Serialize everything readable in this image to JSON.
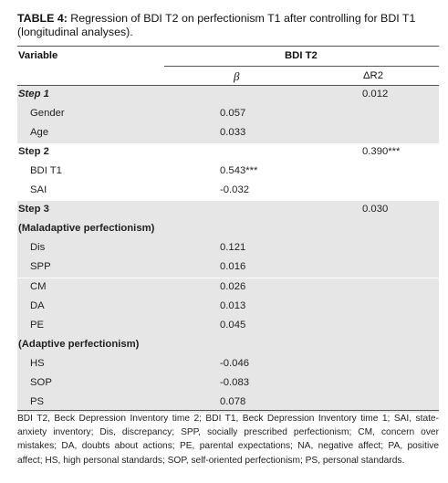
{
  "caption": {
    "label": "TABLE 4:",
    "text": "Regression of BDI T2 on perfectionism T1 after controlling for BDI T1 (longitudinal analyses)."
  },
  "header": {
    "variable": "Variable",
    "group": "BDI T2",
    "beta": "β",
    "delta_r2": "ΔR2"
  },
  "rows": [
    {
      "label": "Step 1",
      "beta": "",
      "dr2": "0.012",
      "style": "bolditalic",
      "indent": 0,
      "shade": true
    },
    {
      "label": "Gender",
      "beta": "0.057",
      "dr2": "",
      "style": "",
      "indent": 1,
      "shade": true
    },
    {
      "label": "Age",
      "beta": "0.033",
      "dr2": "",
      "style": "",
      "indent": 1,
      "shade": true
    },
    {
      "label": "Step 2",
      "beta": "",
      "dr2": "0.390***",
      "style": "bold",
      "indent": 0,
      "shade": false
    },
    {
      "label": "BDI T1",
      "beta": "0.543***",
      "dr2": "",
      "style": "",
      "indent": 1,
      "shade": false
    },
    {
      "label": "SAI",
      "beta": "-0.032",
      "dr2": "",
      "style": "",
      "indent": 1,
      "shade": false
    },
    {
      "label": "Step 3",
      "beta": "",
      "dr2": "0.030",
      "style": "bold",
      "indent": 0,
      "shade": true
    },
    {
      "label": "(Maladaptive perfectionism)",
      "beta": "",
      "dr2": "",
      "style": "bold",
      "indent": 0,
      "shade": true
    },
    {
      "label": "Dis",
      "beta": "0.121",
      "dr2": "",
      "style": "",
      "indent": 1,
      "shade": true
    },
    {
      "label": "SPP",
      "beta": "0.016",
      "dr2": "",
      "style": "",
      "indent": 1,
      "shade": true
    },
    {
      "label": "CM",
      "beta": "0.026",
      "dr2": "",
      "style": "",
      "indent": 1,
      "shade": true
    },
    {
      "label": "DA",
      "beta": "0.013",
      "dr2": "",
      "style": "",
      "indent": 1,
      "shade": true
    },
    {
      "label": "PE",
      "beta": "0.045",
      "dr2": "",
      "style": "",
      "indent": 1,
      "shade": true
    },
    {
      "label": "(Adaptive perfectionism)",
      "beta": "",
      "dr2": "",
      "style": "bold",
      "indent": 0,
      "shade": true
    },
    {
      "label": "HS",
      "beta": "-0.046",
      "dr2": "",
      "style": "",
      "indent": 1,
      "shade": true
    },
    {
      "label": "SOP",
      "beta": "-0.083",
      "dr2": "",
      "style": "",
      "indent": 1,
      "shade": true
    },
    {
      "label": "PS",
      "beta": "0.078",
      "dr2": "",
      "style": "",
      "indent": 1,
      "shade": true
    }
  ],
  "footnote": "BDI T2, Beck Depression Inventory time 2; BDI T1, Beck Depression Inventory time 1; SAI, state-anxiety inventory; Dis, discrepancy; SPP, socially prescribed perfectionism; CM, concern over mistakes; DA, doubts about actions; PE, parental expectations; NA, negative affect; PA, positive affect; HS, high personal standards; SOP, self-oriented perfectionism; PS, personal standards."
}
